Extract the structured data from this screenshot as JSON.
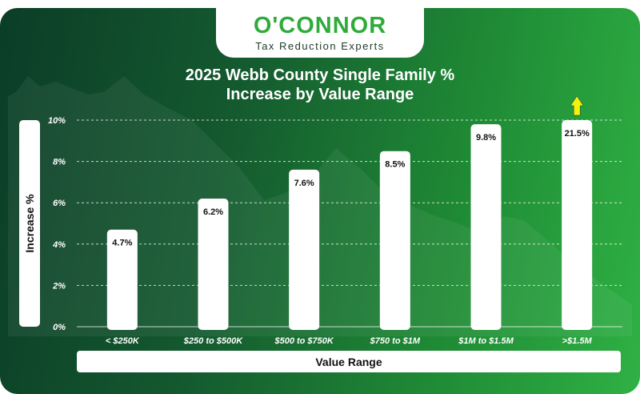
{
  "logo": {
    "name": "O'CONNOR",
    "tagline": "Tax Reduction Experts"
  },
  "chart_data": {
    "type": "bar",
    "title_lines": [
      "2025 Webb County Single Family %",
      "Increase by Value Range"
    ],
    "xlabel": "Value Range",
    "ylabel": "Increase %",
    "categories": [
      "< $250K",
      "$250 to $500K",
      "$500 to $750K",
      "$750 to $1M",
      "$1M to $1.5M",
      ">$1.5M"
    ],
    "values": [
      4.7,
      6.2,
      7.6,
      8.5,
      9.8,
      21.5
    ],
    "data_labels": [
      "4.7%",
      "6.2%",
      "7.6%",
      "8.5%",
      "9.8%",
      "21.5%"
    ],
    "ylim": [
      0,
      10
    ],
    "yticks": [
      "0%",
      "2%",
      "4%",
      "6%",
      "8%",
      "10%"
    ],
    "ytick_values": [
      0,
      2,
      4,
      6,
      8,
      10
    ],
    "grid": true,
    "bar_color": "#ffffff",
    "overflow_arrow_color": "#f2f20d",
    "overflow_note": "Last bar exceeds axis maximum (arrow indicates cut-off)"
  }
}
